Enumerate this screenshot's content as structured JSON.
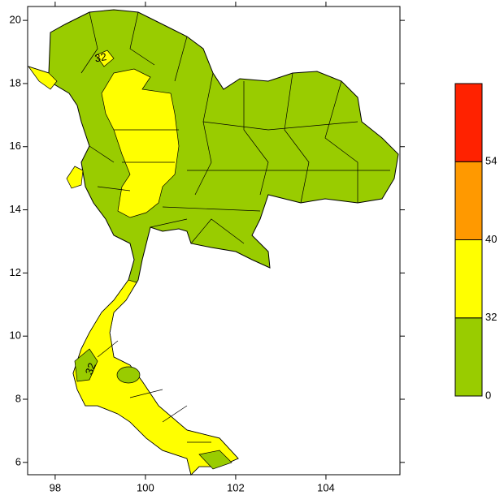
{
  "chart_data": {
    "type": "contour-map",
    "xlim": [
      97.39,
      105.64
    ],
    "xticks": [
      98,
      100,
      102,
      104
    ],
    "ylim": [
      5.61,
      20.44
    ],
    "yticks": [
      6,
      8,
      10,
      12,
      14,
      16,
      18,
      20
    ],
    "colorbar": {
      "levels": [
        0,
        32,
        40,
        54
      ],
      "colors": [
        "#99cc00",
        "#ffff00",
        "#ff9900",
        "#ff2200"
      ]
    },
    "contour_labels": [
      {
        "text": "32",
        "lon": 99.01,
        "lat": 18.8,
        "angle": -10
      },
      {
        "text": "32",
        "lon": 98.8,
        "lat": 8.96,
        "angle": -70
      }
    ]
  }
}
